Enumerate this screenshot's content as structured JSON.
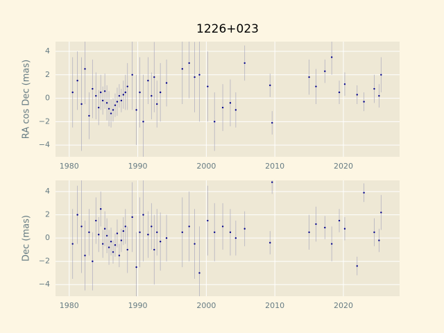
{
  "chart_data": [
    {
      "type": "scatter",
      "title": "1226+023",
      "ylabel": "RA cos Dec (mas)",
      "color": "#00008b",
      "error_color": "#9a9ab8",
      "grid": true,
      "xlim": [
        1978,
        2028.2
      ],
      "ylim": [
        -5,
        4.83
      ],
      "xticks": [
        1980,
        1990,
        2000,
        2010,
        2020
      ],
      "yticks": [
        {
          "value": -4,
          "label": "−4"
        },
        {
          "value": -2,
          "label": "−2"
        },
        0,
        2,
        4
      ],
      "x": [
        1980.5,
        1981.2,
        1981.8,
        1982.3,
        1982.9,
        1983.4,
        1983.9,
        1984.3,
        1984.6,
        1984.9,
        1985.2,
        1985.5,
        1985.8,
        1986.1,
        1986.4,
        1986.7,
        1987.0,
        1987.3,
        1987.6,
        1987.9,
        1988.2,
        1988.5,
        1989.2,
        1989.8,
        1990.3,
        1990.8,
        1991.5,
        1992.0,
        1992.4,
        1992.8,
        1993.3,
        1994.2,
        1996.5,
        1997.5,
        1998.3,
        1999.0,
        2000.2,
        2001.2,
        2002.4,
        2003.5,
        2004.3,
        2005.6,
        2009.3,
        2009.6,
        2015.0,
        2016.0,
        2017.3,
        2018.3,
        2019.4,
        2020.2,
        2022.0,
        2023.0,
        2024.5,
        2025.2,
        2025.5
      ],
      "values": [
        0.5,
        1.5,
        -0.5,
        2.5,
        -1.5,
        0.8,
        0.2,
        -0.8,
        0.5,
        -0.2,
        0.6,
        -0.4,
        -0.9,
        -1.3,
        -1.0,
        -0.6,
        -0.3,
        0.2,
        -0.2,
        0.3,
        0.5,
        1.0,
        2.0,
        -1.0,
        0.5,
        -2.0,
        1.5,
        0.2,
        1.8,
        -0.5,
        0.5,
        1.3,
        2.5,
        3.0,
        1.8,
        2.0,
        1.0,
        -2.0,
        -0.8,
        -0.4,
        -1.0,
        3.0,
        1.1,
        -2.1,
        1.8,
        1.0,
        2.3,
        3.5,
        0.5,
        1.2,
        0.3,
        -0.3,
        0.8,
        0.2,
        2.0
      ],
      "errors": [
        3,
        2.5,
        4,
        3,
        2,
        2.5,
        2,
        1.5,
        1.5,
        1.2,
        1.5,
        1.5,
        1.5,
        1.2,
        1.0,
        1.0,
        1.2,
        1.0,
        1.0,
        1.2,
        1.5,
        2,
        3,
        3,
        3,
        4,
        2,
        2,
        3,
        2,
        2.5,
        2,
        3,
        3,
        3,
        4,
        3,
        2.5,
        2,
        2,
        1.5,
        1.5,
        1,
        1,
        1.5,
        1.5,
        1,
        1.5,
        1,
        1,
        0.8,
        0.8,
        1.2,
        1,
        1.5
      ]
    },
    {
      "type": "scatter",
      "ylabel": "Dec (mas)",
      "color": "#00008b",
      "error_color": "#9a9ab8",
      "grid": true,
      "xlim": [
        1978,
        2028.2
      ],
      "ylim": [
        -5,
        4.96
      ],
      "xticks": [
        1980,
        1990,
        2000,
        2010,
        2020
      ],
      "yticks": [
        {
          "value": -4,
          "label": "−4"
        },
        {
          "value": -2,
          "label": "−2"
        },
        0,
        2,
        4
      ],
      "x": [
        1980.5,
        1981.2,
        1981.8,
        1982.3,
        1982.9,
        1983.4,
        1983.9,
        1984.3,
        1984.6,
        1984.9,
        1985.2,
        1985.5,
        1985.8,
        1986.1,
        1986.4,
        1986.7,
        1987.0,
        1987.3,
        1987.6,
        1987.9,
        1988.2,
        1988.5,
        1989.2,
        1989.8,
        1990.3,
        1990.8,
        1991.5,
        1992.0,
        1992.4,
        1992.8,
        1993.3,
        1994.2,
        1996.5,
        1997.5,
        1998.3,
        1999.0,
        2000.2,
        2001.2,
        2002.4,
        2003.5,
        2004.3,
        2005.6,
        2009.3,
        2009.6,
        2015.0,
        2016.0,
        2017.3,
        2018.3,
        2019.4,
        2020.2,
        2022.0,
        2023.0,
        2024.5,
        2025.2,
        2025.5
      ],
      "values": [
        -0.5,
        2.0,
        1.0,
        -1.5,
        0.5,
        -2.0,
        1.5,
        0.3,
        2.5,
        -0.5,
        0.8,
        0.2,
        -0.8,
        -0.3,
        -1.2,
        -0.6,
        0.4,
        -1.5,
        -0.2,
        0.6,
        1.0,
        -1.0,
        1.8,
        -2.5,
        0.5,
        2.0,
        0.3,
        1.0,
        -1.0,
        0.5,
        -0.3,
        0.0,
        0.5,
        1.0,
        -0.5,
        -3.0,
        1.5,
        0.5,
        1.0,
        0.5,
        0.0,
        0.8,
        -0.4,
        4.8,
        0.5,
        1.2,
        0.9,
        -0.5,
        1.5,
        0.8,
        -2.4,
        3.9,
        0.5,
        -0.2,
        2.2
      ],
      "errors": [
        3,
        2.5,
        4,
        3,
        2,
        2.5,
        2,
        1.5,
        1.5,
        1.2,
        1.5,
        1.5,
        1.5,
        1.2,
        1.0,
        1.0,
        1.2,
        1.0,
        1.0,
        1.2,
        1.5,
        2,
        3,
        3,
        3,
        4,
        2,
        2,
        3,
        2,
        2.5,
        2,
        3,
        3,
        3,
        4,
        3,
        2.5,
        2,
        2,
        1.5,
        1.5,
        1,
        1,
        1.5,
        1.5,
        1,
        1.5,
        1,
        1,
        0.8,
        0.8,
        1.2,
        1,
        1.5
      ]
    }
  ]
}
